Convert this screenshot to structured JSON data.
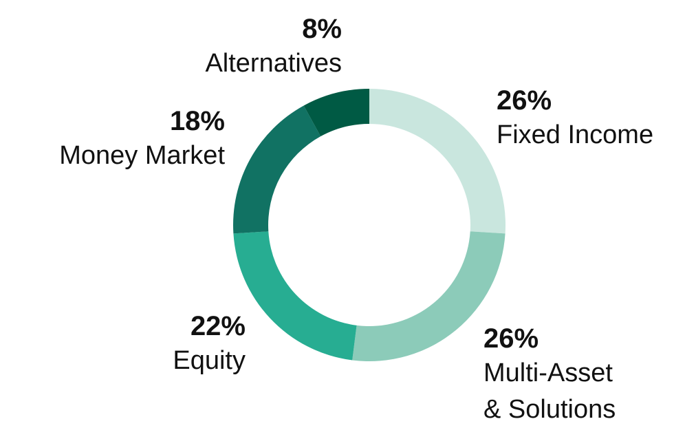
{
  "chart_data": {
    "type": "donut",
    "categories": [
      "Fixed Income",
      "Multi-Asset & Solutions",
      "Equity",
      "Money Market",
      "Alternatives"
    ],
    "values": [
      26,
      26,
      22,
      18,
      8
    ],
    "value_labels": [
      "26%",
      "26%",
      "22%",
      "18%",
      "8%"
    ],
    "colors": [
      "#c9e6de",
      "#8ccbb9",
      "#27ad92",
      "#117263",
      "#005a44"
    ]
  }
}
